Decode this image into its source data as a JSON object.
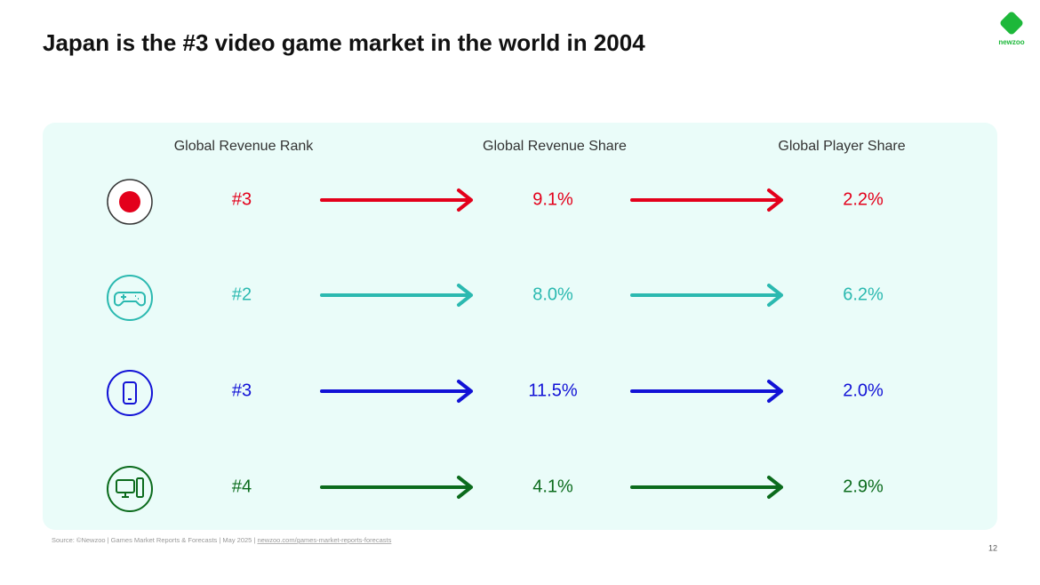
{
  "logo": "newzoo",
  "title": "Japan is the #3 video game market in the world in 2004",
  "table": {
    "headers": [
      "Global Revenue Rank",
      "Global Revenue Share",
      "Global Player Share"
    ],
    "rows": [
      {
        "color": "#e3001b",
        "cells": [
          "#3",
          "9.1%",
          "2.2%"
        ]
      },
      {
        "color": "#2bb9b0",
        "cells": [
          "#2",
          "8.0%",
          "6.2%"
        ]
      },
      {
        "color": "#1212d6",
        "cells": [
          "#3",
          "11.5%",
          "2.0%"
        ]
      },
      {
        "color": "#0b6b1c",
        "cells": [
          "#4",
          "4.1%",
          "2.9%"
        ]
      }
    ]
  },
  "footer": {
    "source": "Source: ©Newzoo | Games Market Reports & Forecasts | May 2025 | ",
    "link": "newzoo.com/games-market-reports-forecasts",
    "page": "12"
  }
}
